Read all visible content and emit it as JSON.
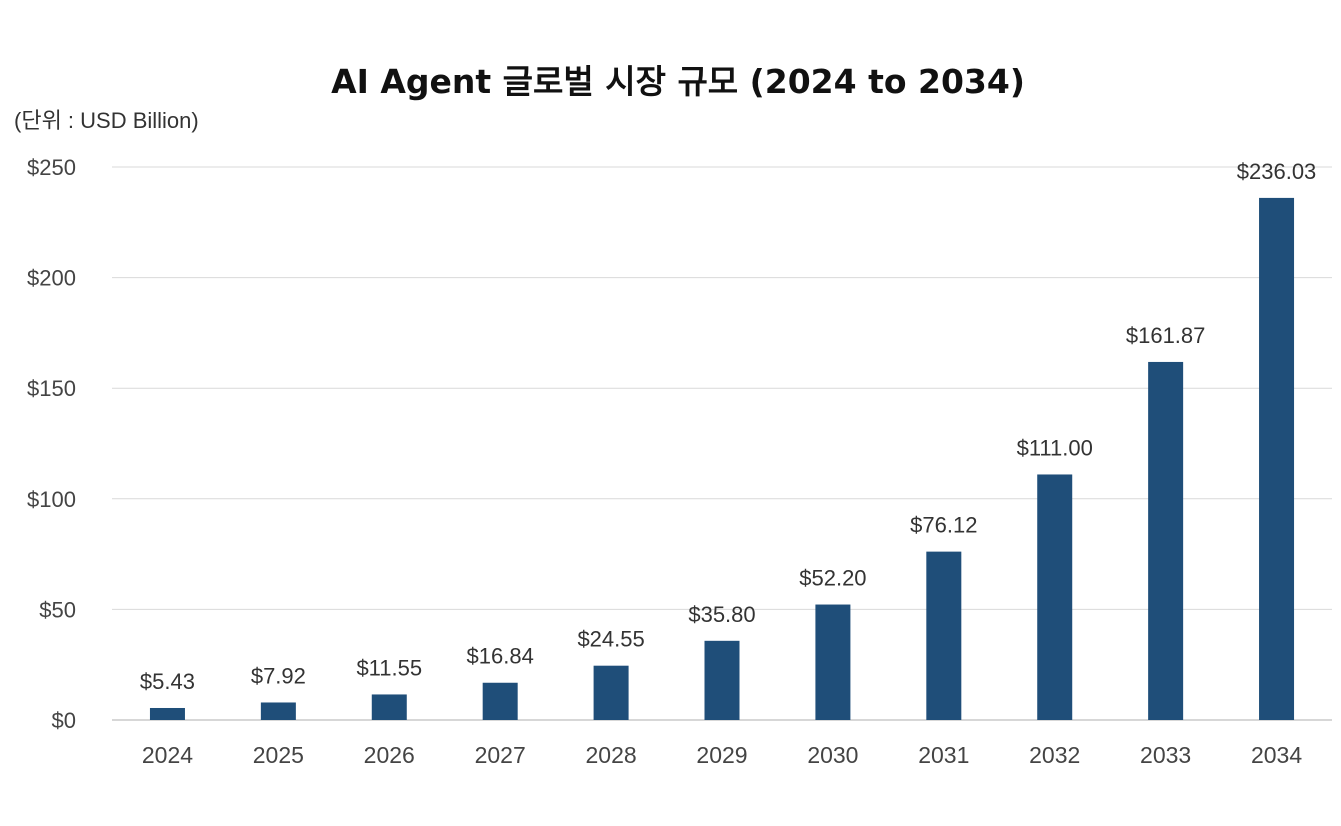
{
  "chart_data": {
    "type": "bar",
    "title": "AI Agent 글로벌 시장 규모 (2024 to 2034)",
    "unit_label": "(단위 : USD Billion)",
    "xlabel": "",
    "ylabel": "",
    "categories": [
      "2024",
      "2025",
      "2026",
      "2027",
      "2028",
      "2029",
      "2030",
      "2031",
      "2032",
      "2033",
      "2034"
    ],
    "values": [
      5.43,
      7.92,
      11.55,
      16.84,
      24.55,
      35.8,
      52.2,
      76.12,
      111.0,
      161.87,
      236.03
    ],
    "value_labels": [
      "$5.43",
      "$7.92",
      "$11.55",
      "$16.84",
      "$24.55",
      "$35.80",
      "$52.20",
      "$76.12",
      "$111.00",
      "$161.87",
      "$236.03"
    ],
    "ylim": [
      0,
      250
    ],
    "yticks": [
      0,
      50,
      100,
      150,
      200,
      250
    ],
    "ytick_labels": [
      "$0",
      "$50",
      "$100",
      "$150",
      "$200",
      "$250"
    ],
    "grid": true,
    "legend": "none",
    "bar_color": "#1f4e79"
  }
}
